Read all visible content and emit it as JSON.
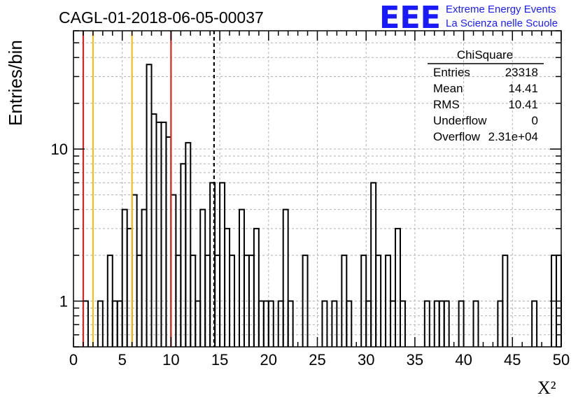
{
  "chart_data": {
    "type": "histogram",
    "title": "CAGL-01-2018-06-05-00037",
    "xlabel": "X²",
    "ylabel": "Entries/bin",
    "xlim": [
      0,
      50
    ],
    "ylim": [
      0.5,
      60
    ],
    "yscale": "log",
    "grid": true,
    "bin_width": 0.5,
    "x_ticks": [
      0,
      5,
      10,
      15,
      20,
      25,
      30,
      35,
      40,
      45,
      50
    ],
    "y_ticks": [
      {
        "value": 1,
        "label": "1"
      },
      {
        "value": 10,
        "label": "10"
      }
    ],
    "bins": [
      {
        "x": 1.0,
        "y": 1
      },
      {
        "x": 2.5,
        "y": 1
      },
      {
        "x": 3.5,
        "y": 2
      },
      {
        "x": 4.0,
        "y": 1
      },
      {
        "x": 4.5,
        "y": 1
      },
      {
        "x": 5.0,
        "y": 4
      },
      {
        "x": 5.5,
        "y": 3
      },
      {
        "x": 6.0,
        "y": 5
      },
      {
        "x": 6.5,
        "y": 2
      },
      {
        "x": 7.0,
        "y": 4
      },
      {
        "x": 7.5,
        "y": 36
      },
      {
        "x": 8.0,
        "y": 17
      },
      {
        "x": 8.5,
        "y": 15
      },
      {
        "x": 9.0,
        "y": 15
      },
      {
        "x": 9.5,
        "y": 12
      },
      {
        "x": 10.0,
        "y": 5
      },
      {
        "x": 10.5,
        "y": 2
      },
      {
        "x": 11.0,
        "y": 8
      },
      {
        "x": 11.5,
        "y": 11
      },
      {
        "x": 12.0,
        "y": 2
      },
      {
        "x": 12.5,
        "y": 1
      },
      {
        "x": 13.0,
        "y": 4
      },
      {
        "x": 13.5,
        "y": 2
      },
      {
        "x": 14.0,
        "y": 6
      },
      {
        "x": 14.5,
        "y": 2
      },
      {
        "x": 15.0,
        "y": 6
      },
      {
        "x": 15.5,
        "y": 3
      },
      {
        "x": 16.0,
        "y": 2
      },
      {
        "x": 17.0,
        "y": 4
      },
      {
        "x": 17.5,
        "y": 2
      },
      {
        "x": 18.0,
        "y": 2
      },
      {
        "x": 18.5,
        "y": 3
      },
      {
        "x": 19.0,
        "y": 1
      },
      {
        "x": 19.5,
        "y": 1
      },
      {
        "x": 20.0,
        "y": 1
      },
      {
        "x": 21.0,
        "y": 1
      },
      {
        "x": 21.5,
        "y": 4
      },
      {
        "x": 22.0,
        "y": 1
      },
      {
        "x": 23.5,
        "y": 2
      },
      {
        "x": 25.5,
        "y": 1
      },
      {
        "x": 26.5,
        "y": 1
      },
      {
        "x": 27.5,
        "y": 2
      },
      {
        "x": 28.0,
        "y": 1
      },
      {
        "x": 29.5,
        "y": 2
      },
      {
        "x": 30.0,
        "y": 1
      },
      {
        "x": 30.5,
        "y": 6
      },
      {
        "x": 31.0,
        "y": 2
      },
      {
        "x": 32.0,
        "y": 2
      },
      {
        "x": 32.5,
        "y": 1
      },
      {
        "x": 33.0,
        "y": 3
      },
      {
        "x": 33.5,
        "y": 1
      },
      {
        "x": 36.0,
        "y": 1
      },
      {
        "x": 37.0,
        "y": 1
      },
      {
        "x": 37.5,
        "y": 1
      },
      {
        "x": 38.0,
        "y": 1
      },
      {
        "x": 39.5,
        "y": 1
      },
      {
        "x": 41.0,
        "y": 1
      },
      {
        "x": 43.5,
        "y": 1
      },
      {
        "x": 44.0,
        "y": 2
      },
      {
        "x": 47.0,
        "y": 1
      },
      {
        "x": 49.0,
        "y": 2
      },
      {
        "x": 49.5,
        "y": 2
      }
    ],
    "vertical_lines": [
      {
        "x": 1,
        "color": "#dd2222",
        "style": "solid"
      },
      {
        "x": 2,
        "color": "#f0c020",
        "style": "solid"
      },
      {
        "x": 6,
        "color": "#f0c020",
        "style": "solid"
      },
      {
        "x": 10,
        "color": "#dd2222",
        "style": "solid"
      },
      {
        "x": 14.41,
        "color": "#000000",
        "style": "dashed"
      }
    ],
    "stats_box": {
      "title": "ChiSquare",
      "rows": [
        {
          "label": "Entries",
          "value": "23318"
        },
        {
          "label": "Mean",
          "value": "14.41"
        },
        {
          "label": "RMS",
          "value": "10.41"
        },
        {
          "label": "Underflow",
          "value": "0"
        },
        {
          "label": "Overflow",
          "value": "2.31e+04"
        }
      ]
    }
  },
  "logo": {
    "text": "EEE",
    "line1": "Extreme Energy Events",
    "line2": "La Scienza nelle Scuole",
    "color": "#1a1aff"
  }
}
